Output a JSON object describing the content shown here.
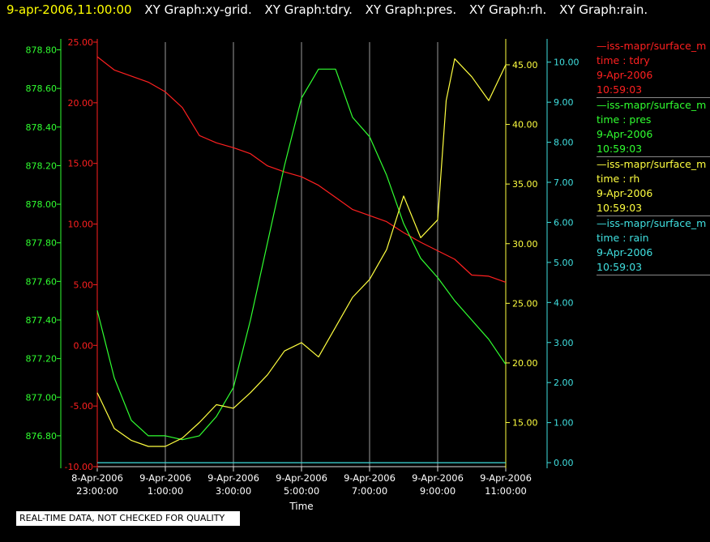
{
  "header": {
    "timestamp": "9-apr-2006,11:00:00",
    "graphs": [
      "XY Graph:xy-grid.",
      "XY Graph:tdry.",
      "XY Graph:pres.",
      "XY Graph:rh.",
      "XY Graph:rain."
    ]
  },
  "legend": [
    {
      "source": "—iss-mapr/surface_m",
      "var": "time : tdry",
      "date": "9-Apr-2006",
      "time": "10:59:03",
      "color": "#ff2020"
    },
    {
      "source": "—iss-mapr/surface_m",
      "var": "time : pres",
      "date": "9-Apr-2006",
      "time": "10:59:03",
      "color": "#30ff30"
    },
    {
      "source": "—iss-mapr/surface_m",
      "var": "time : rh",
      "date": "9-Apr-2006",
      "time": "10:59:03",
      "color": "#ffff40"
    },
    {
      "source": "—iss-mapr/surface_m",
      "var": "time : rain",
      "date": "9-Apr-2006",
      "time": "10:59:03",
      "color": "#40e0e0"
    }
  ],
  "notice": "REAL-TIME DATA, NOT CHECKED FOR QUALITY",
  "chart_data": {
    "type": "line",
    "xlabel": "Time",
    "xlim": [
      "8-Apr-2006 23:00:00",
      "9-Apr-2006 11:00:00"
    ],
    "x_ticks": [
      {
        "date": "8-Apr-2006",
        "time": "23:00:00"
      },
      {
        "date": "9-Apr-2006",
        "time": "1:00:00"
      },
      {
        "date": "9-Apr-2006",
        "time": "3:00:00"
      },
      {
        "date": "9-Apr-2006",
        "time": "5:00:00"
      },
      {
        "date": "9-Apr-2006",
        "time": "7:00:00"
      },
      {
        "date": "9-Apr-2006",
        "time": "9:00:00"
      },
      {
        "date": "9-Apr-2006",
        "time": "11:00:00"
      }
    ],
    "grid": "vertical",
    "axes": {
      "pres": {
        "side": "far-left",
        "color": "#30ff30",
        "ylim": [
          876.64,
          878.84
        ],
        "ticks": [
          "876.80",
          "877.00",
          "877.20",
          "877.40",
          "877.60",
          "877.80",
          "878.00",
          "878.20",
          "878.40",
          "878.60",
          "878.80"
        ]
      },
      "tdry": {
        "side": "left",
        "color": "#ff2020",
        "ylim": [
          -10,
          25
        ],
        "ticks": [
          "-10.00",
          "-5.00",
          "0.00",
          "5.00",
          "10.00",
          "15.00",
          "20.00",
          "25.00"
        ]
      },
      "rh": {
        "side": "right",
        "color": "#ffff40",
        "ylim": [
          11.3,
          46.9
        ],
        "ticks": [
          "15.00",
          "20.00",
          "25.00",
          "30.00",
          "35.00",
          "40.00",
          "45.00"
        ]
      },
      "rain": {
        "side": "far-right",
        "color": "#40e0e0",
        "ylim": [
          -0.1,
          10.5
        ],
        "ticks": [
          "0.00",
          "1.00",
          "2.00",
          "3.00",
          "4.00",
          "5.00",
          "6.00",
          "7.00",
          "8.00",
          "9.00",
          "10.00"
        ]
      }
    },
    "series": [
      {
        "name": "tdry",
        "axis": "tdry",
        "color": "#ff2020",
        "x": [
          "8-Apr-2006 23:00",
          "8-Apr-2006 23:30",
          "9-Apr-2006 00:00",
          "9-Apr-2006 00:30",
          "9-Apr-2006 01:00",
          "9-Apr-2006 01:30",
          "9-Apr-2006 02:00",
          "9-Apr-2006 02:30",
          "9-Apr-2006 03:00",
          "9-Apr-2006 03:30",
          "9-Apr-2006 04:00",
          "9-Apr-2006 04:30",
          "9-Apr-2006 05:00",
          "9-Apr-2006 05:30",
          "9-Apr-2006 06:00",
          "9-Apr-2006 06:30",
          "9-Apr-2006 07:00",
          "9-Apr-2006 07:30",
          "9-Apr-2006 08:00",
          "9-Apr-2006 08:30",
          "9-Apr-2006 09:00",
          "9-Apr-2006 09:30",
          "9-Apr-2006 10:00",
          "9-Apr-2006 10:30",
          "9-Apr-2006 11:00"
        ],
        "values": [
          23.8,
          22.7,
          22.2,
          21.7,
          20.9,
          19.6,
          17.3,
          16.7,
          16.3,
          15.8,
          14.8,
          14.3,
          13.9,
          13.2,
          12.2,
          11.2,
          10.7,
          10.2,
          9.3,
          8.5,
          7.8,
          7.1,
          5.8,
          5.7,
          5.2
        ]
      },
      {
        "name": "pres",
        "axis": "pres",
        "color": "#30ff30",
        "x": [
          "8-Apr-2006 23:00",
          "8-Apr-2006 23:30",
          "9-Apr-2006 00:00",
          "9-Apr-2006 00:30",
          "9-Apr-2006 01:00",
          "9-Apr-2006 01:30",
          "9-Apr-2006 02:00",
          "9-Apr-2006 02:30",
          "9-Apr-2006 03:00",
          "9-Apr-2006 03:30",
          "9-Apr-2006 04:00",
          "9-Apr-2006 04:30",
          "9-Apr-2006 05:00",
          "9-Apr-2006 05:30",
          "9-Apr-2006 06:00",
          "9-Apr-2006 06:30",
          "9-Apr-2006 07:00",
          "9-Apr-2006 07:30",
          "9-Apr-2006 08:00",
          "9-Apr-2006 08:30",
          "9-Apr-2006 09:00",
          "9-Apr-2006 09:30",
          "9-Apr-2006 10:00",
          "9-Apr-2006 10:30",
          "9-Apr-2006 11:00"
        ],
        "values": [
          877.45,
          877.1,
          876.88,
          876.8,
          876.8,
          876.78,
          876.8,
          876.9,
          877.05,
          877.4,
          877.8,
          878.2,
          878.55,
          878.7,
          878.7,
          878.45,
          878.35,
          878.15,
          877.9,
          877.72,
          877.62,
          877.5,
          877.4,
          877.3,
          877.17
        ]
      },
      {
        "name": "rh",
        "axis": "rh",
        "color": "#ffff40",
        "x": [
          "8-Apr-2006 23:00",
          "8-Apr-2006 23:30",
          "9-Apr-2006 00:00",
          "9-Apr-2006 00:30",
          "9-Apr-2006 01:00",
          "9-Apr-2006 01:30",
          "9-Apr-2006 02:00",
          "9-Apr-2006 02:30",
          "9-Apr-2006 03:00",
          "9-Apr-2006 03:30",
          "9-Apr-2006 04:00",
          "9-Apr-2006 04:30",
          "9-Apr-2006 05:00",
          "9-Apr-2006 05:30",
          "9-Apr-2006 06:00",
          "9-Apr-2006 06:30",
          "9-Apr-2006 07:00",
          "9-Apr-2006 07:30",
          "9-Apr-2006 08:00",
          "9-Apr-2006 08:30",
          "9-Apr-2006 09:00",
          "9-Apr-2006 09:15",
          "9-Apr-2006 09:30",
          "9-Apr-2006 10:00",
          "9-Apr-2006 10:30",
          "9-Apr-2006 11:00"
        ],
        "values": [
          17.5,
          14.5,
          13.5,
          13.0,
          13.0,
          13.7,
          15.0,
          16.5,
          16.2,
          17.5,
          19.0,
          21.0,
          21.7,
          20.5,
          23.0,
          25.5,
          27.0,
          29.5,
          34.0,
          30.5,
          32.0,
          42.0,
          45.5,
          44.0,
          42.0,
          45.0
        ]
      },
      {
        "name": "rain",
        "axis": "rain",
        "color": "#40e0e0",
        "x": [
          "8-Apr-2006 23:00",
          "9-Apr-2006 11:00"
        ],
        "values": [
          0.0,
          0.0
        ]
      }
    ]
  }
}
